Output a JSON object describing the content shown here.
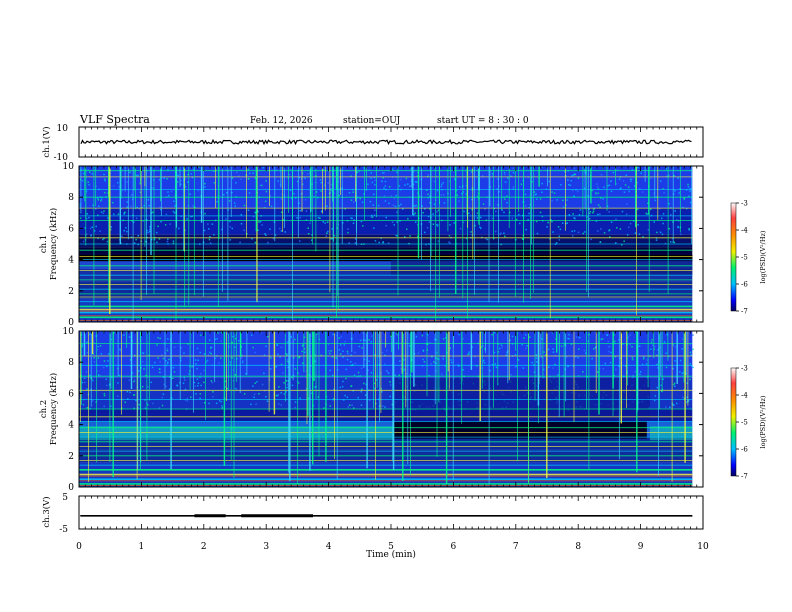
{
  "header": {
    "title": "VLF Spectra",
    "date": "Feb. 12, 2026",
    "station": "station=OUJ",
    "start": "start UT =  8 : 30 : 0"
  },
  "colors": {
    "waveform": "#000000",
    "frame": "#000000",
    "spectrogram_low": "#000080",
    "spectrogram_mid": "#00c0ff",
    "spectrogram_high": "#00ff70"
  },
  "chart_data": [
    {
      "type": "line",
      "panel": "ch1-waveform",
      "ylabel": "ch.1(V)",
      "ylim": [
        -10,
        10
      ],
      "yticks": [
        "10",
        "-10"
      ],
      "x": [
        0,
        9.83
      ],
      "y_level": 0,
      "y_amplitude": 1.2
    },
    {
      "type": "heatmap",
      "panel": "ch1-spectrogram",
      "ylabel": "ch.1\nFrequency  (kHz)",
      "ylim": [
        0,
        10
      ],
      "yticks": [
        "0",
        "2",
        "4",
        "6",
        "8",
        "10"
      ],
      "colorbar": {
        "label": "log(PSD)(V²/Hz)",
        "ticks": [
          "-3",
          "-4",
          "-5",
          "-6",
          "-7"
        ],
        "range": [
          -7,
          -3
        ]
      },
      "band_lines_khz": [
        0.3,
        0.6,
        0.8,
        1.0,
        1.3,
        1.6,
        1.8,
        2.1,
        2.4,
        2.7,
        3.0,
        3.3,
        3.6,
        4.0,
        4.2,
        4.6,
        5.0,
        5.4,
        6.5,
        6.8,
        7.3,
        8.0,
        8.5,
        9.3,
        9.7
      ]
    },
    {
      "type": "heatmap",
      "panel": "ch2-spectrogram",
      "ylabel": "ch.2\nFrequency  (kHz)",
      "ylim": [
        0,
        10
      ],
      "yticks": [
        "0",
        "2",
        "4",
        "6",
        "8",
        "10"
      ],
      "colorbar": {
        "label": "log(PSD)(V²/Hz)",
        "ticks": [
          "-3",
          "-4",
          "-5",
          "-6",
          "-7"
        ],
        "range": [
          -7,
          -3
        ]
      },
      "band_lines_khz": [
        0.2,
        0.5,
        0.8,
        1.1,
        1.4,
        1.7,
        2.0,
        2.3,
        2.6,
        2.9,
        3.2,
        3.5,
        3.8,
        4.2,
        4.5,
        5.0,
        5.6,
        6.2,
        7.1,
        7.8,
        8.4,
        9.2
      ]
    },
    {
      "type": "line",
      "panel": "ch3-waveform",
      "ylabel": "ch.3(V)",
      "ylim": [
        -5,
        5
      ],
      "yticks": [
        "5",
        "-5"
      ],
      "segments": [
        {
          "x": [
            0.02,
            9.83
          ],
          "y": -1.0
        },
        {
          "x": [
            1.85,
            2.35
          ],
          "y": -1.0,
          "bold": true
        },
        {
          "x": [
            2.6,
            3.75
          ],
          "y": -1.0,
          "bold": true
        }
      ]
    },
    {
      "type": "axis",
      "panel": "time-axis",
      "xlabel": "Time  (min)",
      "xlim": [
        0,
        10
      ],
      "xticks": [
        "0",
        "1",
        "2",
        "3",
        "4",
        "5",
        "6",
        "7",
        "8",
        "9",
        "10"
      ]
    }
  ]
}
